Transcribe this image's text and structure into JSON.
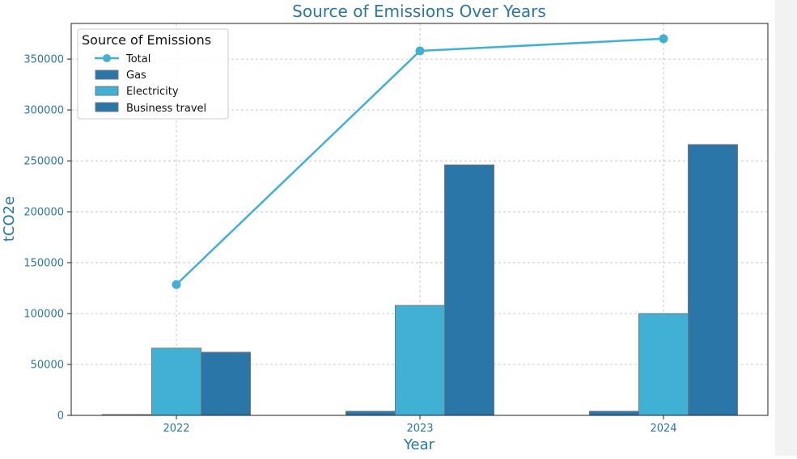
{
  "chart_data": {
    "type": "bar",
    "title": "Source of Emissions Over Years",
    "xlabel": "Year",
    "ylabel": "tCO2e",
    "categories": [
      "2022",
      "2023",
      "2024"
    ],
    "ylim": [
      0,
      385000
    ],
    "yticks": [
      0,
      50000,
      100000,
      150000,
      200000,
      250000,
      300000,
      350000
    ],
    "grid": true,
    "legend": {
      "title": "Source of Emissions",
      "placement": "top-left"
    },
    "series": [
      {
        "name": "Gas",
        "type": "bar",
        "values": [
          500,
          4000,
          4000
        ],
        "color": "#2a76a8"
      },
      {
        "name": "Electricity",
        "type": "bar",
        "values": [
          66000,
          108000,
          100000
        ],
        "color": "#40b0d5"
      },
      {
        "name": "Business travel",
        "type": "bar",
        "values": [
          62000,
          246000,
          266000
        ],
        "color": "#2a76a8"
      }
    ],
    "line_series": {
      "name": "Total",
      "type": "line",
      "values": [
        128500,
        358000,
        370000
      ],
      "color": "#40b0d5"
    },
    "colors": {
      "title": "#2a76a8",
      "tick_labels": "#2a76a8",
      "axis_labels": "#2a76a8",
      "grid": "#bcbcbc"
    }
  }
}
